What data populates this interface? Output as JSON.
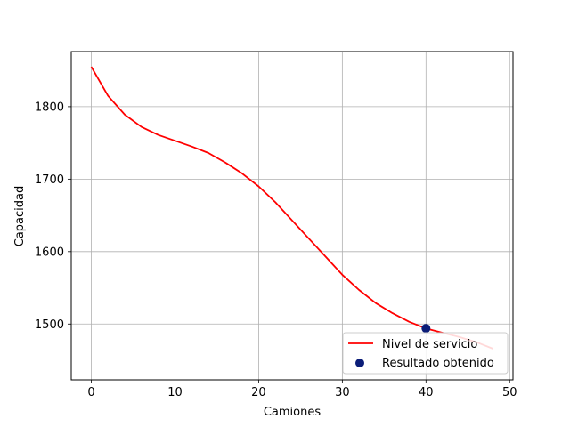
{
  "chart_data": {
    "type": "line",
    "title": "",
    "xlabel": "Camiones",
    "ylabel": "Capacidad",
    "xlim": [
      -2.4,
      50.4
    ],
    "ylim": [
      1423,
      1876
    ],
    "xticks": [
      0,
      10,
      20,
      30,
      40,
      50
    ],
    "yticks": [
      1500,
      1600,
      1700,
      1800
    ],
    "grid": true,
    "legend_position": "lower right",
    "series": [
      {
        "name": "Nivel de servicio",
        "kind": "line",
        "color": "#ff0000",
        "x": [
          0,
          2,
          4,
          6,
          8,
          10,
          12,
          14,
          16,
          18,
          20,
          22,
          24,
          26,
          28,
          30,
          32,
          34,
          36,
          38,
          40,
          42,
          44,
          46,
          48
        ],
        "y": [
          1855,
          1815,
          1789,
          1772,
          1761,
          1753,
          1745,
          1736,
          1723,
          1708,
          1690,
          1668,
          1643,
          1618,
          1593,
          1568,
          1547,
          1529,
          1515,
          1503,
          1494,
          1488,
          1482,
          1475,
          1466
        ]
      },
      {
        "name": "Resultado obtenido",
        "kind": "scatter",
        "color": "#0b1d78",
        "x": [
          40
        ],
        "y": [
          1494
        ]
      }
    ]
  }
}
